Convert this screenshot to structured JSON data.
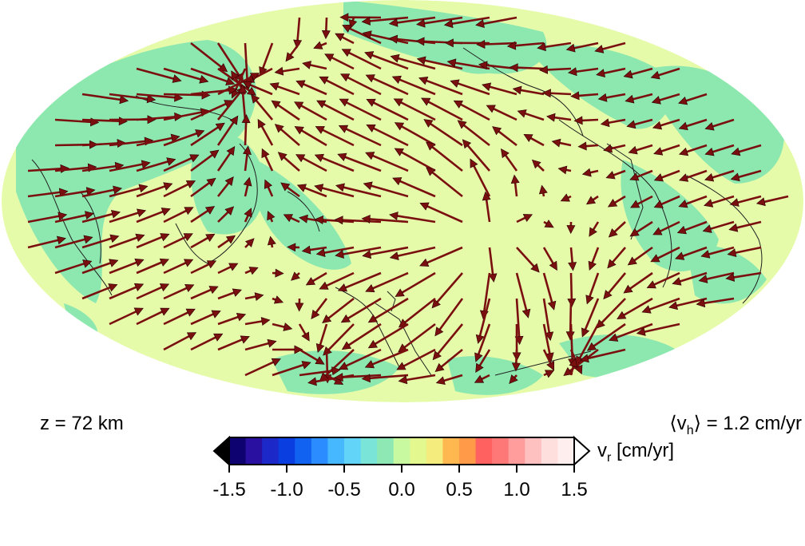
{
  "depth_label": "z = 72 km",
  "mean_horizontal_velocity": {
    "prefix": "⟨v",
    "subscript": "h",
    "suffix": "⟩ = 1.2 cm/yr"
  },
  "colorbar": {
    "unit_main": "v",
    "unit_subscript": "r",
    "unit_suffix": " [cm/yr]",
    "range": [
      -1.5,
      1.5
    ],
    "ticks": [
      "-1.5",
      "-1.0",
      "-0.5",
      "0.0",
      "0.5",
      "1.0",
      "1.5"
    ],
    "colors": [
      "#0d0270",
      "#2a10a0",
      "#1c28c8",
      "#0a3ee0",
      "#1162f0",
      "#2a8cff",
      "#45b8ff",
      "#62d4f8",
      "#7ae4d8",
      "#8ee8b4",
      "#c8f8a0",
      "#e4f890",
      "#f4ec7c",
      "#ffb850",
      "#ff9a48",
      "#ff6060",
      "#ff7878",
      "#ff9c9c",
      "#ffc0c0",
      "#ffdede",
      "#ffeeee"
    ],
    "under_color": "#000000",
    "over_color": "#ffffff"
  },
  "map_colors": {
    "ocean_fill": "#e6fbaa",
    "anomaly_fill": "#8de8b0",
    "arrow": "#7a0f0f",
    "coast": "#1e1e1e"
  }
}
